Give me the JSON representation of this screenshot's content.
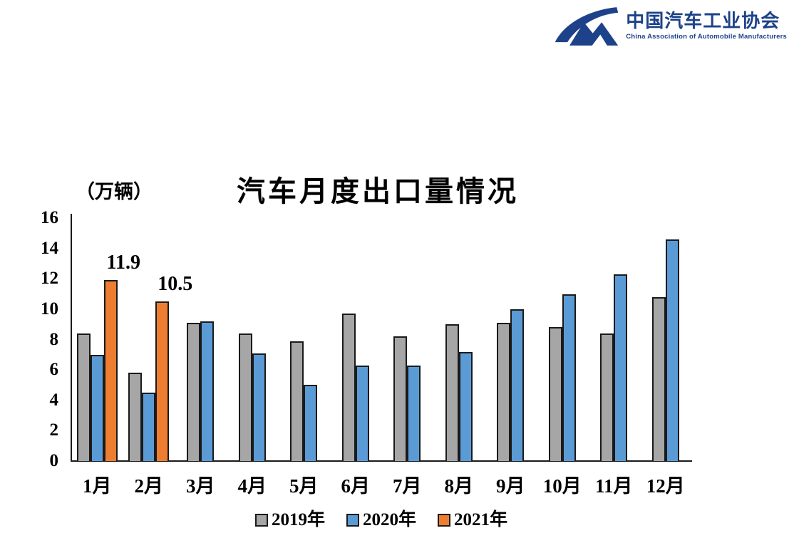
{
  "header": {
    "org_name_zh": "中国汽车工业协会",
    "org_name_en": "China Association of Automobile Manufacturers",
    "logo_color": "#1d4289"
  },
  "chart_data": {
    "type": "bar",
    "title": "汽车月度出口量情况",
    "unit_label": "（万辆）",
    "categories": [
      "1月",
      "2月",
      "3月",
      "4月",
      "5月",
      "6月",
      "7月",
      "8月",
      "9月",
      "10月",
      "11月",
      "12月"
    ],
    "series": [
      {
        "name": "2019年",
        "color": "#A6A6A6",
        "values": [
          8.4,
          5.8,
          9.1,
          8.4,
          7.9,
          9.7,
          8.2,
          9.0,
          9.1,
          8.8,
          8.4,
          10.8
        ]
      },
      {
        "name": "2020年",
        "color": "#5B9BD5",
        "values": [
          7.0,
          4.5,
          9.2,
          7.1,
          5.0,
          6.3,
          6.3,
          7.2,
          10.0,
          11.0,
          12.3,
          14.6
        ]
      },
      {
        "name": "2021年",
        "color": "#ED7D31",
        "values": [
          11.9,
          10.5,
          null,
          null,
          null,
          null,
          null,
          null,
          null,
          null,
          null,
          null
        ]
      }
    ],
    "data_labels": [
      {
        "series": "2021年",
        "category": "1月",
        "text": "11.9"
      },
      {
        "series": "2021年",
        "category": "2月",
        "text": "10.5"
      }
    ],
    "ylim": [
      0,
      16
    ],
    "yticks": [
      0,
      2,
      4,
      6,
      8,
      10,
      12,
      14,
      16
    ],
    "grid": false,
    "legend_position": "bottom",
    "legend_labels": [
      "2019年",
      "2020年",
      "2021年"
    ]
  }
}
